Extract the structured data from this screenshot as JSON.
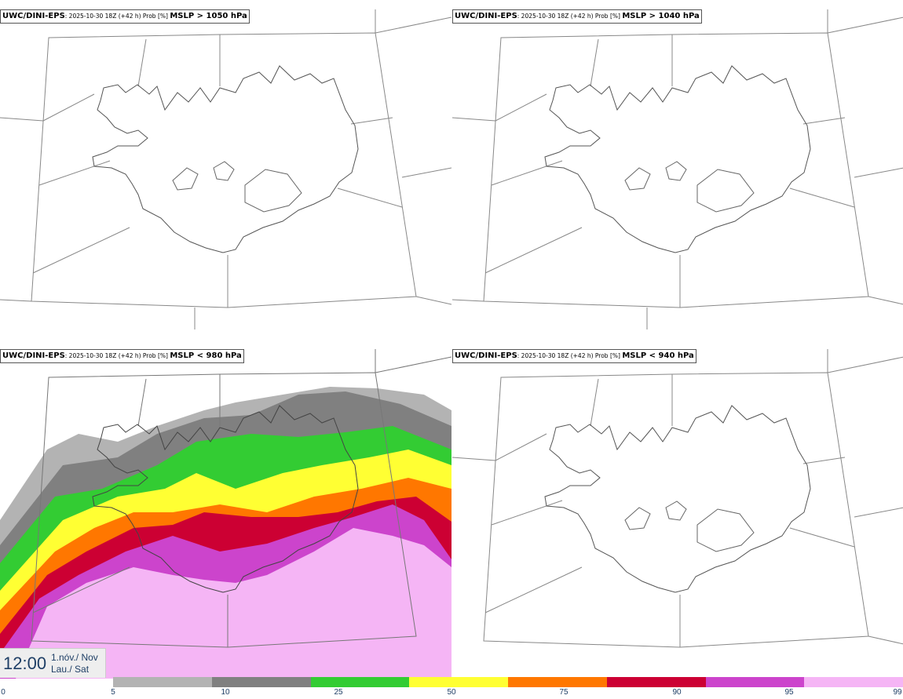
{
  "panels": [
    {
      "model": "UWC/DINI-EPS",
      "meta": ": 2025-10-30 18Z (+42 h) Prob [%] ",
      "threshold": "MSLP > 1050 hPa"
    },
    {
      "model": "UWC/DINI-EPS",
      "meta": ": 2025-10-30 18Z (+42 h) Prob [%] ",
      "threshold": "MSLP > 1040 hPa"
    },
    {
      "model": "UWC/DINI-EPS",
      "meta": ": 2025-10-30 18Z (+42 h) Prob [%] ",
      "threshold": "MSLP < 980 hPa"
    },
    {
      "model": "UWC/DINI-EPS",
      "meta": ": 2025-10-30 18Z (+42 h) Prob [%] ",
      "threshold": "MSLP < 940 hPa"
    }
  ],
  "time": {
    "hour": "12:00",
    "date_line": "1.nóv./ Nov",
    "day_line": "Lau./ Sat"
  },
  "colorbar": {
    "ticks": [
      "0",
      "5",
      "10",
      "25",
      "50",
      "75",
      "90",
      "95",
      "99"
    ],
    "colors": [
      "#b3b3b3",
      "#808080",
      "#33cc33",
      "#ffff33",
      "#ff7700",
      "#cc0033",
      "#cc44cc",
      "#f5b5f5"
    ]
  }
}
